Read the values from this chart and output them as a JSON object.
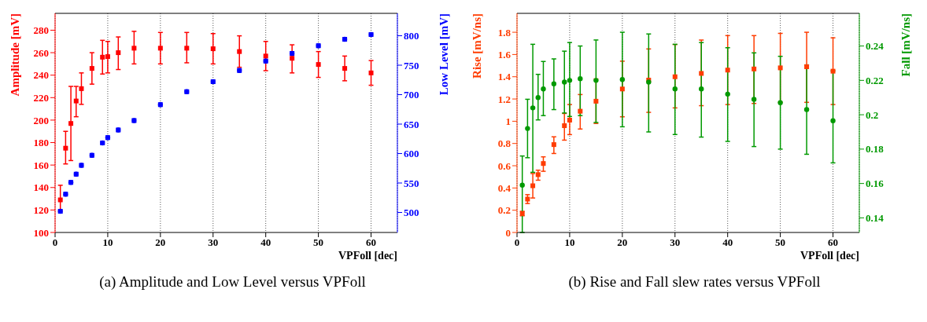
{
  "chart_data": [
    {
      "type": "scatter",
      "xlabel": "VPFoll [dec]",
      "ylabel": "Amplitude [mV]",
      "y2label": "Low Level [mV]",
      "annotations": [
        "(a) Amplitude and Low Level versus VPFoll"
      ],
      "grid": "x",
      "x": [
        1,
        2,
        3,
        4,
        5,
        7,
        9,
        10,
        12,
        15,
        20,
        25,
        30,
        35,
        40,
        45,
        50,
        55,
        60
      ],
      "xlim": [
        0,
        65
      ],
      "xticks": [
        0,
        10,
        20,
        30,
        40,
        50,
        60
      ],
      "ylim": [
        100,
        295
      ],
      "yticks": [
        100,
        120,
        140,
        160,
        180,
        200,
        220,
        240,
        260,
        280
      ],
      "y2lim": [
        466,
        838
      ],
      "y2ticks": [
        500,
        550,
        600,
        650,
        700,
        750,
        800
      ],
      "series": [
        {
          "color": "#ff0000",
          "marker": "square",
          "axis": "y",
          "values": [
            129,
            175,
            197,
            217,
            228,
            246,
            256,
            256.5,
            260,
            264,
            264,
            264,
            263.5,
            261,
            257,
            255,
            249.5,
            246,
            242
          ],
          "errors": [
            [
              119,
              142
            ],
            [
              161,
              190
            ],
            [
              164,
              230
            ],
            [
              203,
              230
            ],
            [
              214,
              242
            ],
            [
              232,
              260
            ],
            [
              241,
              271
            ],
            [
              242,
              270
            ],
            [
              245,
              274
            ],
            [
              250,
              279
            ],
            [
              250,
              278
            ],
            [
              251,
              278
            ],
            [
              250,
              277
            ],
            [
              247,
              275
            ],
            [
              244,
              270
            ],
            [
              242,
              267
            ],
            [
              238,
              261
            ],
            [
              235,
              257
            ],
            [
              231,
              253
            ]
          ]
        },
        {
          "color": "#0000ff",
          "marker": "circle",
          "axis": "y2",
          "values": [
            502,
            531,
            551,
            565,
            580,
            597,
            618,
            627,
            640,
            656,
            683,
            705,
            722,
            741,
            757,
            770,
            783,
            794,
            802
          ],
          "errors": [
            3,
            3,
            3,
            3,
            3,
            3,
            3,
            3,
            3,
            3,
            3,
            3,
            3,
            3,
            3,
            3,
            3,
            3,
            3
          ]
        }
      ]
    },
    {
      "type": "scatter",
      "xlabel": "VPFoll [dec]",
      "ylabel": "Rise [mV/ns]",
      "y2label": "Fall [mV/ns]",
      "annotations": [
        "(b) Rise and Fall slew rates versus VPFoll"
      ],
      "grid": "x",
      "x": [
        1,
        2,
        3,
        4,
        5,
        7,
        9,
        10,
        12,
        15,
        20,
        25,
        30,
        35,
        40,
        45,
        50,
        55,
        60
      ],
      "xlim": [
        0,
        65
      ],
      "xticks": [
        0,
        10,
        20,
        30,
        40,
        50,
        60
      ],
      "ylim": [
        0,
        1.97
      ],
      "yticks": [
        0,
        0.2,
        0.4,
        0.6,
        0.8,
        1,
        1.2,
        1.4,
        1.6,
        1.8
      ],
      "y2lim": [
        0.1315,
        0.259
      ],
      "y2ticks": [
        0.14,
        0.16,
        0.18,
        0.2,
        0.22,
        0.24
      ],
      "series": [
        {
          "color": "#ff3c00",
          "marker": "square",
          "axis": "y",
          "values": [
            0.17,
            0.3,
            0.42,
            0.52,
            0.62,
            0.79,
            0.96,
            1.01,
            1.09,
            1.18,
            1.29,
            1.37,
            1.4,
            1.43,
            1.46,
            1.47,
            1.48,
            1.49,
            1.45
          ],
          "errors": [
            [
              0.15,
              0.19
            ],
            [
              0.26,
              0.34
            ],
            [
              0.31,
              0.53
            ],
            [
              0.47,
              0.56
            ],
            [
              0.55,
              0.68
            ],
            [
              0.71,
              0.86
            ],
            [
              0.83,
              1.07
            ],
            [
              0.88,
              1.15
            ],
            [
              0.93,
              1.24
            ],
            [
              0.98,
              1.38
            ],
            [
              1.04,
              1.54
            ],
            [
              1.08,
              1.65
            ],
            [
              1.12,
              1.69
            ],
            [
              1.14,
              1.73
            ],
            [
              1.15,
              1.77
            ],
            [
              1.16,
              1.77
            ],
            [
              1.17,
              1.79
            ],
            [
              1.17,
              1.8
            ],
            [
              1.15,
              1.75
            ]
          ]
        },
        {
          "color": "#009900",
          "marker": "circle",
          "axis": "y2",
          "values": [
            0.159,
            0.192,
            0.204,
            0.21,
            0.215,
            0.218,
            0.219,
            0.22,
            0.221,
            0.22,
            0.2205,
            0.219,
            0.215,
            0.215,
            0.212,
            0.209,
            0.207,
            0.203,
            0.1965
          ],
          "errors": [
            [
              0.1315,
              0.176
            ],
            [
              0.175,
              0.209
            ],
            [
              0.1665,
              0.241
            ],
            [
              0.197,
              0.2235
            ],
            [
              0.1995,
              0.231
            ],
            [
              0.203,
              0.2325
            ],
            [
              0.201,
              0.237
            ],
            [
              0.199,
              0.242
            ],
            [
              0.1995,
              0.24
            ],
            [
              0.1955,
              0.2435
            ],
            [
              0.193,
              0.248
            ],
            [
              0.19,
              0.247
            ],
            [
              0.1885,
              0.241
            ],
            [
              0.187,
              0.242
            ],
            [
              0.1845,
              0.239
            ],
            [
              0.1815,
              0.236
            ],
            [
              0.18,
              0.234
            ],
            [
              0.177,
              0.229
            ],
            [
              0.172,
              0.2255
            ]
          ]
        }
      ]
    }
  ]
}
